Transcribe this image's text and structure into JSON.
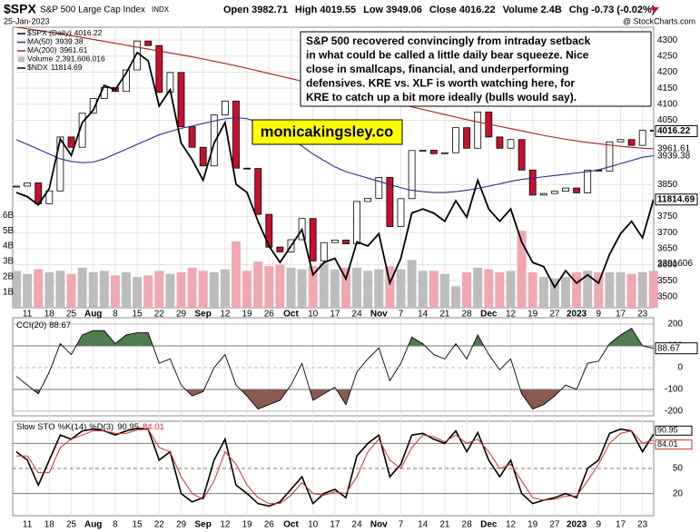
{
  "header": {
    "symbol": "$SPX",
    "name": "S&P 500 Large Cap Index",
    "exchange": "INDX",
    "date": "25-Jan-2023",
    "stats": [
      {
        "label": "Open",
        "value": 3982.71
      },
      {
        "label": "High",
        "value": 4019.55
      },
      {
        "label": "Low",
        "value": 3949.06
      },
      {
        "label": "Close",
        "value": 4016.22
      },
      {
        "label": "Volume",
        "value": "2.4B"
      },
      {
        "label": "Chg",
        "value": "-0.73 (-0.02%)"
      }
    ],
    "source": "@ StockCharts.com"
  },
  "annotation": {
    "lines": [
      "S&P 500 recovered convincingly from intraday setback",
      "in what could be called a little daily bear squeeze. Nice",
      "close in smallcaps, financial, and underperforming",
      "defensives. KRE vs. XLF is worth watching here, for",
      "KRE to catch up a bit more ideally (bulls would say)."
    ]
  },
  "watermark": "monicakingsley.co",
  "chart_data": [
    {
      "type": "candlestick",
      "categories": [
        null,
        "11",
        null,
        "18",
        null,
        "25",
        null,
        "Aug",
        null,
        "8",
        null,
        "15",
        null,
        "22",
        null,
        "29",
        null,
        "Sep",
        null,
        "12",
        null,
        "19",
        null,
        "26",
        null,
        "Oct",
        null,
        "10",
        null,
        "17",
        null,
        "24",
        null,
        "Nov",
        null,
        "7",
        null,
        "14",
        null,
        "21",
        null,
        "28",
        null,
        "Dec",
        null,
        "12",
        null,
        "19",
        null,
        "27",
        null,
        "2023",
        null,
        "9",
        null,
        "17",
        null,
        "23",
        null
      ],
      "series": [
        {
          "name": "$SPX (Daily)",
          "color": "#000000",
          "down_color": "#c8102e",
          "values": [
            3845,
            3855,
            3790,
            3830,
            3998,
            3966,
            4072,
            4118,
            4152,
            4140,
            4207,
            4297,
            4283,
            4137,
            4199,
            4030,
            3966,
            3908,
            4067,
            4110,
            3901,
            3900,
            3757,
            3655,
            3640,
            3678,
            3744,
            3612,
            3669,
            3677,
            3665,
            3797,
            3807,
            3872,
            3719,
            3806,
            3956,
            3957,
            3946,
            3949,
            4027,
            3963,
            4076,
            3998,
            3963,
            3990,
            3895,
            3817,
            3822,
            3829,
            3839,
            3824,
            3895,
            3892,
            3983,
            3990,
            3972,
            4019,
            4016.22
          ]
        },
        {
          "name": "MA(50)",
          "color": "#1f2f8f",
          "values": [
            3990,
            3975,
            3960,
            3945,
            3930,
            3922,
            3918,
            3920,
            3930,
            3945,
            3960,
            3975,
            3990,
            4005,
            4015,
            4025,
            4032,
            4040,
            4048,
            4055,
            4058,
            4055,
            4045,
            4030,
            4010,
            3990,
            3970,
            3945,
            3925,
            3905,
            3890,
            3880,
            3870,
            3860,
            3850,
            3840,
            3832,
            3828,
            3825,
            3825,
            3828,
            3832,
            3838,
            3845,
            3852,
            3860,
            3866,
            3870,
            3874,
            3878,
            3882,
            3886,
            3890,
            3896,
            3905,
            3915,
            3925,
            3935,
            3939.38
          ]
        },
        {
          "name": "MA(200)",
          "color": "#b01c1c",
          "values": [
            4340,
            4335,
            4330,
            4325,
            4320,
            4314,
            4308,
            4302,
            4296,
            4290,
            4284,
            4278,
            4272,
            4266,
            4260,
            4254,
            4248,
            4241,
            4234,
            4227,
            4220,
            4212,
            4204,
            4196,
            4188,
            4180,
            4172,
            4164,
            4156,
            4148,
            4140,
            4132,
            4124,
            4116,
            4108,
            4100,
            4092,
            4084,
            4076,
            4068,
            4060,
            4052,
            4045,
            4038,
            4031,
            4024,
            4017,
            4010,
            4003,
            3997,
            3991,
            3986,
            3981,
            3977,
            3973,
            3969,
            3966,
            3963,
            3961.61
          ]
        },
        {
          "name": "$NDX",
          "color": "#000000",
          "axis": "y2",
          "values": [
            11900,
            11850,
            11750,
            11950,
            12550,
            12350,
            12750,
            12900,
            13200,
            13150,
            13350,
            13600,
            13500,
            12950,
            13150,
            12500,
            12300,
            12050,
            12500,
            12750,
            12000,
            11900,
            11550,
            11250,
            11050,
            11250,
            11450,
            10900,
            11050,
            11100,
            10850,
            11300,
            11250,
            11400,
            10800,
            11100,
            11650,
            11700,
            11650,
            11550,
            11800,
            11600,
            12050,
            11700,
            11550,
            11700,
            11300,
            11050,
            11000,
            10750,
            10950,
            10800,
            10900,
            10800,
            11150,
            11400,
            11550,
            11350,
            11814.69
          ]
        }
      ],
      "volume": {
        "name": "Volume",
        "color": "#bdbdbd",
        "down_color": "#f0a8b0",
        "legend_label": "2,391,606,016",
        "tag_label": "2391606",
        "values": [
          2400000000,
          2200000000,
          2500000000,
          2300000000,
          2400000000,
          2200000000,
          2600000000,
          2300000000,
          2400000000,
          2100000000,
          2300000000,
          2000000000,
          2100000000,
          2400000000,
          2200000000,
          2300000000,
          2600000000,
          2400000000,
          2300000000,
          2500000000,
          4300000000,
          2400000000,
          3000000000,
          2700000000,
          2800000000,
          2600000000,
          2500000000,
          2700000000,
          2900000000,
          2500000000,
          2600000000,
          2600000000,
          2400000000,
          2500000000,
          2700000000,
          2500000000,
          3100000000,
          2400000000,
          2400000000,
          2200000000,
          1400000000,
          2300000000,
          2600000000,
          2500000000,
          2300000000,
          2400000000,
          5000000000,
          2300000000,
          2000000000,
          1900000000,
          2000000000,
          2300000000,
          2400000000,
          2300000000,
          2300000000,
          2300000000,
          2200000000,
          2300000000,
          2391606016
        ],
        "ylim": [
          0,
          18200000000
        ],
        "yticks": [
          {
            "value": 1000000000,
            "label": "1B"
          },
          {
            "value": 2000000000,
            "label": "2B"
          },
          {
            "value": 3000000000,
            "label": "3B"
          },
          {
            "value": 4000000000,
            "label": "4B"
          },
          {
            "value": 5000000000,
            "label": "5B"
          },
          {
            "value": 6000000000,
            "label": "6B"
          }
        ]
      },
      "ylim": [
        3466,
        4340
      ],
      "yticks": [
        3500,
        3550,
        3600,
        3650,
        3700,
        3750,
        3800,
        3850,
        4050,
        4100,
        4150,
        4200,
        4250,
        4300
      ],
      "y2lim": [
        10500,
        13908
      ],
      "grid": true
    },
    {
      "type": "line",
      "series": [
        {
          "name": "CCI(20)",
          "color": "#000000",
          "up_fill": "#4f7d4f",
          "down_fill": "#8a5a52",
          "values": [
            -40,
            -80,
            -120,
            -20,
            110,
            60,
            150,
            170,
            170,
            110,
            150,
            160,
            160,
            20,
            40,
            -80,
            -130,
            -110,
            0,
            60,
            -80,
            -130,
            -190,
            -170,
            -150,
            -80,
            20,
            -150,
            -120,
            -90,
            -170,
            -20,
            40,
            90,
            -60,
            20,
            140,
            110,
            60,
            40,
            110,
            40,
            150,
            60,
            -10,
            40,
            -120,
            -190,
            -170,
            -130,
            -80,
            -100,
            20,
            30,
            110,
            150,
            180,
            100,
            88.67
          ]
        }
      ],
      "ylim": [
        -221,
        229
      ],
      "yticks": [
        -200,
        -100,
        0,
        100,
        200
      ]
    },
    {
      "type": "line",
      "title": "Slow STO",
      "categories": [
        null,
        "11",
        null,
        "18",
        null,
        "25",
        null,
        "Aug",
        null,
        "8",
        null,
        "15",
        null,
        "22",
        null,
        "29",
        null,
        "Sep",
        null,
        "12",
        null,
        "19",
        null,
        "26",
        null,
        "Oct",
        null,
        "10",
        null,
        "17",
        null,
        "24",
        null,
        "Nov",
        null,
        "7",
        null,
        "14",
        null,
        "21",
        null,
        "28",
        null,
        "Dec",
        null,
        "12",
        null,
        "19",
        null,
        "27",
        null,
        "2023",
        null,
        "9",
        null,
        "17",
        null,
        "23",
        null
      ],
      "series": [
        {
          "name": "%K(14)",
          "color": "#000000",
          "values": [
            70,
            60,
            30,
            60,
            90,
            85,
            95,
            97,
            95,
            90,
            95,
            98,
            97,
            60,
            70,
            20,
            10,
            15,
            60,
            85,
            30,
            20,
            8,
            5,
            10,
            25,
            40,
            8,
            20,
            25,
            15,
            65,
            80,
            90,
            40,
            55,
            90,
            92,
            85,
            80,
            95,
            70,
            93,
            60,
            40,
            60,
            20,
            8,
            12,
            15,
            20,
            15,
            50,
            60,
            92,
            97,
            95,
            70,
            90.95
          ]
        },
        {
          "name": "%D(3)",
          "color": "#d03030",
          "values": [
            65,
            65,
            45,
            45,
            75,
            85,
            90,
            95,
            95,
            92,
            92,
            96,
            97,
            75,
            70,
            40,
            20,
            13,
            35,
            70,
            55,
            30,
            15,
            8,
            8,
            18,
            33,
            20,
            18,
            22,
            20,
            40,
            70,
            85,
            60,
            50,
            75,
            90,
            88,
            82,
            90,
            80,
            85,
            70,
            50,
            55,
            35,
            15,
            12,
            13,
            17,
            17,
            35,
            55,
            80,
            92,
            95,
            80,
            84.01
          ]
        }
      ],
      "ylim": [
        -6.5,
        106.5
      ],
      "yticks": [
        20,
        50,
        80
      ]
    }
  ]
}
